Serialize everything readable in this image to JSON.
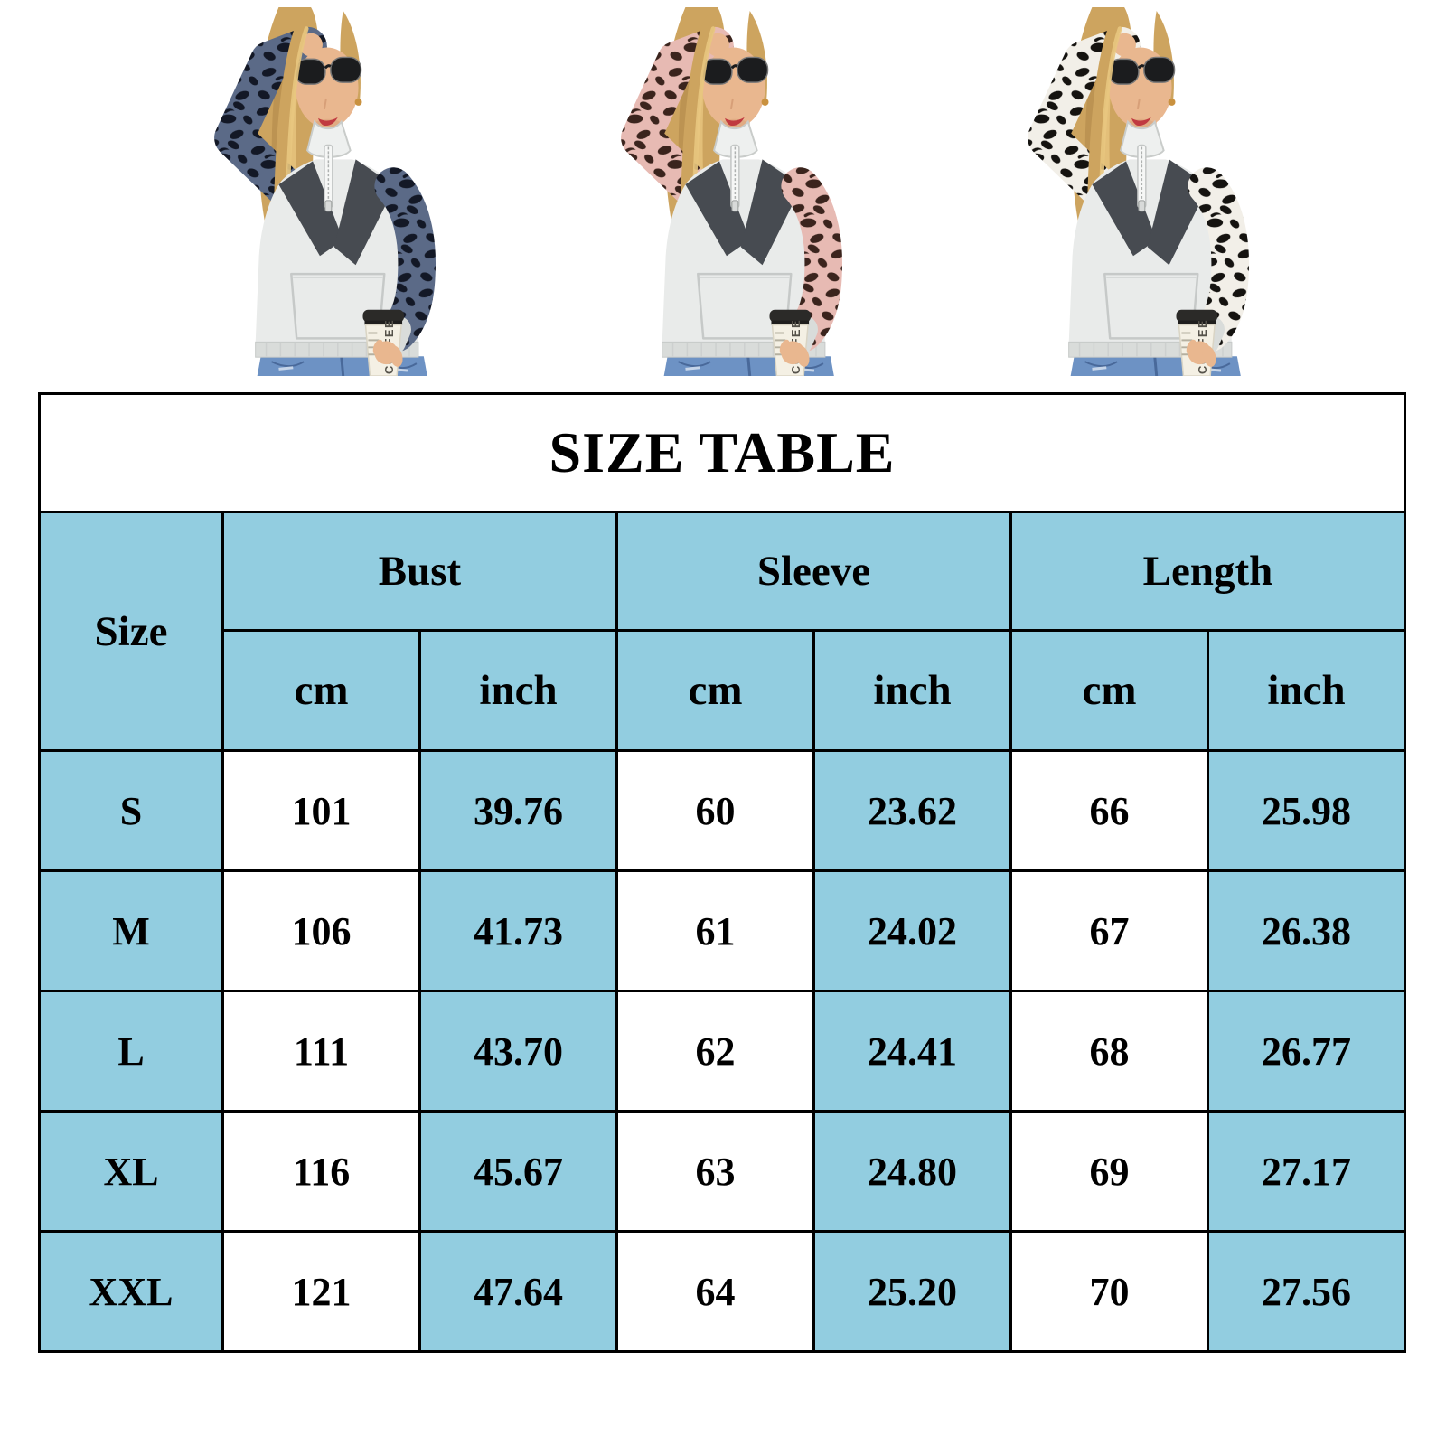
{
  "products": {
    "shared": {
      "body_color": "#e9ebea",
      "body_shade": "#d9dcda",
      "panel_color": "#474b51",
      "collar_color": "#eef0ef",
      "hair_color": "#cda45f",
      "hair_highlight": "#e8c67f",
      "hair_shadow": "#a87f42",
      "skin_color": "#e9b78f",
      "skin_shadow": "#d79f78",
      "jeans_color": "#6d92c4",
      "jeans_seam": "#49699a",
      "lips_color": "#c03a40",
      "glasses_color": "#1b1c1e",
      "zipper_color": "#f6f7f6",
      "cup_color": "#f4f0e4",
      "cup_lid_color": "#2b2a28",
      "cup_text": "COFFEE",
      "cup_text_color": "#55524a",
      "gold_color": "#c9913f"
    },
    "variants": [
      {
        "name": "navy-leopard",
        "sleeve_base": "#5b6a87",
        "sleeve_spot": "#131826"
      },
      {
        "name": "pink-leopard",
        "sleeve_base": "#e7bab3",
        "sleeve_spot": "#3b241d"
      },
      {
        "name": "white-leopard",
        "sleeve_base": "#f2efe8",
        "sleeve_spot": "#151310"
      }
    ]
  },
  "size_table": {
    "title": "SIZE TABLE",
    "corner_label": "Size",
    "measure_groups": [
      {
        "label": "Bust"
      },
      {
        "label": "Sleeve"
      },
      {
        "label": "Length"
      }
    ],
    "unit_labels": [
      "cm",
      "inch"
    ],
    "rows": [
      {
        "size": "S",
        "bust_cm": "101",
        "bust_inch": "39.76",
        "sleeve_cm": "60",
        "sleeve_inch": "23.62",
        "length_cm": "66",
        "length_inch": "25.98"
      },
      {
        "size": "M",
        "bust_cm": "106",
        "bust_inch": "41.73",
        "sleeve_cm": "61",
        "sleeve_inch": "24.02",
        "length_cm": "67",
        "length_inch": "26.38"
      },
      {
        "size": "L",
        "bust_cm": "111",
        "bust_inch": "43.70",
        "sleeve_cm": "62",
        "sleeve_inch": "24.41",
        "length_cm": "68",
        "length_inch": "26.77"
      },
      {
        "size": "XL",
        "bust_cm": "116",
        "bust_inch": "45.67",
        "sleeve_cm": "63",
        "sleeve_inch": "24.80",
        "length_cm": "69",
        "length_inch": "27.17"
      },
      {
        "size": "XXL",
        "bust_cm": "121",
        "bust_inch": "47.64",
        "sleeve_cm": "64",
        "sleeve_inch": "25.20",
        "length_cm": "70",
        "length_inch": "27.56"
      }
    ],
    "colors": {
      "header_bg": "#92cde0",
      "cell_bg": "#ffffff",
      "border": "#000000",
      "text": "#000000",
      "title_bg": "#ffffff"
    }
  },
  "chart_data": {
    "type": "table",
    "title": "SIZE TABLE",
    "columns": [
      "Size",
      "Bust cm",
      "Bust inch",
      "Sleeve cm",
      "Sleeve inch",
      "Length cm",
      "Length inch"
    ],
    "rows": [
      [
        "S",
        101,
        39.76,
        60,
        23.62,
        66,
        25.98
      ],
      [
        "M",
        106,
        41.73,
        61,
        24.02,
        67,
        26.38
      ],
      [
        "L",
        111,
        43.7,
        62,
        24.41,
        68,
        26.77
      ],
      [
        "XL",
        116,
        45.67,
        63,
        24.8,
        69,
        27.17
      ],
      [
        "XXL",
        121,
        47.64,
        64,
        25.2,
        70,
        27.56
      ]
    ]
  }
}
